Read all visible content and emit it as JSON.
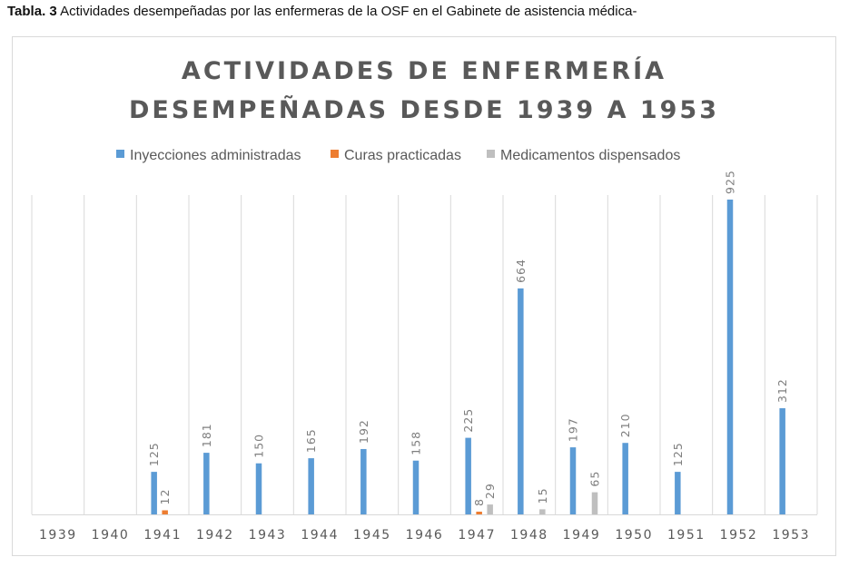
{
  "caption": {
    "bold": "Tabla. 3",
    "text": " Actividades desempeñadas por las enfermeras de la OSF en el Gabinete de asistencia médica-"
  },
  "chart_data": {
    "type": "bar",
    "title_lines": [
      "ACTIVIDADES DE ENFERMERÍA",
      "DESEMPEÑADAS DESDE 1939 A 1953"
    ],
    "xlabel": "",
    "ylabel": "",
    "categories": [
      "1939",
      "1940",
      "1941",
      "1942",
      "1943",
      "1944",
      "1945",
      "1946",
      "1947",
      "1948",
      "1949",
      "1950",
      "1951",
      "1952",
      "1953"
    ],
    "series": [
      {
        "name": "Inyecciones administradas",
        "color": "#5b9bd5",
        "values": [
          null,
          null,
          125,
          181,
          150,
          165,
          192,
          158,
          225,
          664,
          197,
          210,
          125,
          925,
          312
        ]
      },
      {
        "name": "Curas practicadas",
        "color": "#ed7d31",
        "values": [
          null,
          null,
          12,
          null,
          null,
          null,
          null,
          null,
          8,
          null,
          null,
          null,
          null,
          null,
          null
        ]
      },
      {
        "name": "Medicamentos dispensados",
        "color": "#bfbfbf",
        "values": [
          null,
          null,
          null,
          null,
          null,
          null,
          null,
          null,
          29,
          15,
          65,
          null,
          null,
          null,
          null
        ]
      }
    ],
    "legend_position": "top",
    "grid": "vertical-category-separators"
  }
}
